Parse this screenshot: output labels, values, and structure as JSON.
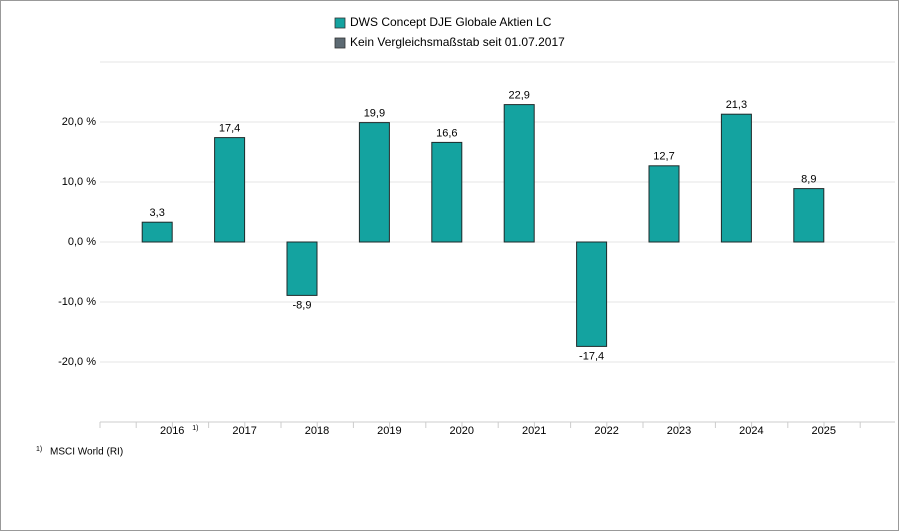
{
  "chart_data": {
    "type": "bar",
    "categories": [
      "2016",
      "2017",
      "2018",
      "2019",
      "2020",
      "2021",
      "2022",
      "2023",
      "2024",
      "2025"
    ],
    "category_footnote": {
      "index": 0,
      "marker": "1)",
      "text": "MSCI World (RI)"
    },
    "series": [
      {
        "name": "DWS Concept DJE Globale Aktien LC",
        "color": "#14a3a0",
        "values": [
          3.3,
          17.4,
          -8.9,
          19.9,
          16.6,
          22.9,
          -17.4,
          12.7,
          21.3,
          8.9
        ],
        "value_labels": [
          "3,3",
          "17,4",
          "-8,9",
          "19,9",
          "16,6",
          "22,9",
          "-17,4",
          "12,7",
          "21,3",
          "8,9"
        ]
      },
      {
        "name": "Kein Vergleichsmaßstab seit 01.07.2017",
        "color": "#5d6a73",
        "values": [
          null,
          null,
          null,
          null,
          null,
          null,
          null,
          null,
          null,
          null
        ]
      }
    ],
    "ylim": [
      -30,
      30
    ],
    "yticks": [
      {
        "value": -20,
        "label": "-20,0 %"
      },
      {
        "value": -10,
        "label": "-10,0 %"
      },
      {
        "value": 0,
        "label": "0,0 %"
      },
      {
        "value": 10,
        "label": "10,0 %"
      },
      {
        "value": 20,
        "label": "20,0 %"
      }
    ],
    "grid": true
  }
}
